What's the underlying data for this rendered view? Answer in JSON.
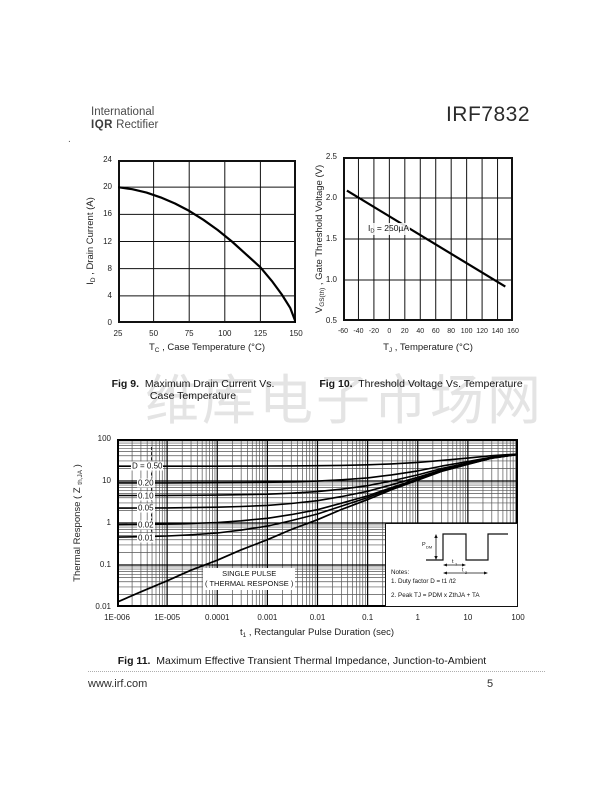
{
  "header": {
    "brand_line1": "International",
    "brand_bold": "IQR",
    "brand_line2": "Rectifier",
    "stray_dot": ".",
    "part": "IRF7832"
  },
  "watermark": "维库电子市场网",
  "footer": {
    "site": "www.irf.com",
    "page": "5"
  },
  "colors": {
    "ink": "#111111",
    "grid_minor": "#555555",
    "watermark": "#cfcfcf"
  },
  "captions": {
    "fig9": {
      "label": "Fig 9.",
      "text": "Maximum Drain Current Vs.",
      "text2": "Case Temperature"
    },
    "fig10": {
      "label": "Fig 10.",
      "text": "Threshold Voltage Vs. Temperature"
    },
    "fig11": {
      "label": "Fig 11.",
      "text": "Maximum Effective Transient Thermal Impedance, Junction-to-Ambient"
    }
  },
  "chart_data": [
    {
      "id": "fig9",
      "type": "line",
      "title": "Fig 9. Maximum Drain Current Vs. Case Temperature",
      "xlabel": {
        "pre": "T",
        "sub": "C",
        "post": " , Case Temperature (°C)"
      },
      "ylabel": {
        "pre": "I",
        "sub": "D",
        "post": " , Drain Current (A)"
      },
      "xlim": [
        25,
        150
      ],
      "ylim": [
        0,
        24
      ],
      "xticks": [
        25,
        50,
        75,
        100,
        125,
        150
      ],
      "yticks": [
        24,
        20,
        16,
        12,
        8,
        4,
        0
      ],
      "grid": true,
      "series": [
        {
          "name": "maximum drain current",
          "x": [
            25,
            35,
            45,
            55,
            65,
            75,
            85,
            95,
            105,
            115,
            125,
            133,
            140,
            146,
            150
          ],
          "y": [
            20,
            19.7,
            19.2,
            18.5,
            17.6,
            16.5,
            15.2,
            13.7,
            12.0,
            10.1,
            8.2,
            6.2,
            4.2,
            2.2,
            0
          ]
        }
      ]
    },
    {
      "id": "fig10",
      "type": "line",
      "title": "Fig 10. Threshold Voltage Vs. Temperature",
      "xlabel": {
        "pre": "T",
        "sub": "J",
        "post": " , Temperature (°C)"
      },
      "ylabel": {
        "pre": "V",
        "sub": "GS(th)",
        "post": " , Gate Threshold Voltage (V)"
      },
      "annotation": {
        "pre": "I",
        "sub": "D",
        "post": " = 250µA"
      },
      "xlim": [
        -60,
        160
      ],
      "ylim": [
        0.5,
        2.5
      ],
      "xticks": [
        -60,
        -40,
        -20,
        0,
        20,
        40,
        60,
        80,
        100,
        120,
        140,
        160
      ],
      "yticks": [
        "2.5",
        "2.0",
        "1.5",
        "1.0",
        "0.5"
      ],
      "grid": true,
      "series": [
        {
          "name": "gate threshold voltage",
          "x": [
            -55,
            150
          ],
          "y": [
            2.09,
            0.92
          ]
        }
      ]
    },
    {
      "id": "fig11",
      "type": "line",
      "xscale": "log",
      "yscale": "log",
      "title": "Fig 11. Maximum Effective Transient Thermal Impedance, Junction-to-Ambient",
      "xlabel": {
        "pre": "t",
        "sub": "1",
        "post": " , Rectangular Pulse Duration (sec)"
      },
      "ylabel": {
        "pre": "Thermal Response ( Z ",
        "sub": "th,JA",
        "post": " )"
      },
      "xlim": [
        1e-06,
        100
      ],
      "ylim": [
        0.01,
        100
      ],
      "xtick_labels": [
        "1E-006",
        "1E-005",
        "0.0001",
        "0.001",
        "0.01",
        "0.1",
        "1",
        "10",
        "100"
      ],
      "ytick_labels": [
        "100",
        "10",
        "1",
        "0.1",
        "0.01"
      ],
      "zth_ja_steady": 45,
      "duty_factors": [
        0.5,
        0.2,
        0.1,
        0.05,
        0.02,
        0.01
      ],
      "duty_labels": [
        "D = 0.50",
        "0.20",
        "0.10",
        "0.05",
        "0.02",
        "0.01"
      ],
      "single_pulse": {
        "t": [
          1e-06,
          3e-06,
          1e-05,
          3e-05,
          0.0001,
          0.0003,
          0.001,
          0.003,
          0.01,
          0.03,
          0.1,
          0.3,
          1,
          3,
          10,
          30,
          100
        ],
        "z": [
          0.013,
          0.023,
          0.042,
          0.075,
          0.13,
          0.23,
          0.4,
          0.7,
          1.2,
          2.1,
          3.6,
          6.2,
          10.5,
          17,
          25,
          35,
          43
        ]
      },
      "single_pulse_label": {
        "line1": "SINGLE PULSE",
        "line2": "( THERMAL RESPONSE )"
      },
      "inset": {
        "notes1": "Notes:",
        "notes2": "1. Duty factor D = t1 /t2",
        "notes3": "2. Peak TJ = PDM x ZthJA + TA",
        "p": "P",
        "p_sub": "DM",
        "t1": "t",
        "t1_sub": "1",
        "t2": "t",
        "t2_sub": "2"
      }
    }
  ]
}
